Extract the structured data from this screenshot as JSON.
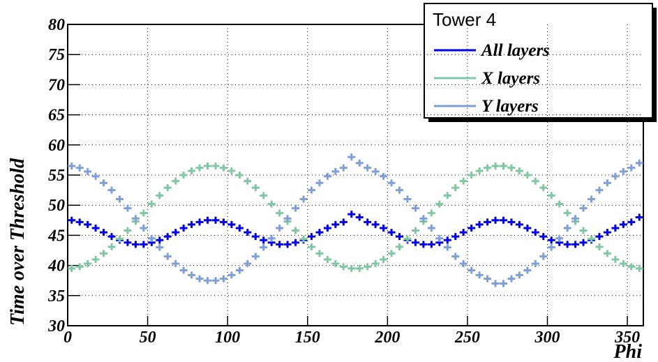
{
  "chart_data": {
    "type": "scatter",
    "legend_title": "Tower 4",
    "x_label": "Phi",
    "y_label": "Time over Threshold",
    "xlim": [
      0,
      360
    ],
    "ylim": [
      30,
      80
    ],
    "xticks": [
      0,
      50,
      100,
      150,
      200,
      250,
      300,
      350
    ],
    "yticks": [
      30,
      35,
      40,
      45,
      50,
      55,
      60,
      65,
      70,
      75,
      80
    ],
    "grid": true,
    "legend": "upper right",
    "x": [
      2.5,
      7.5,
      12.5,
      17.5,
      22.5,
      27.5,
      32.5,
      37.5,
      42.5,
      47.5,
      52.5,
      57.5,
      62.5,
      67.5,
      72.5,
      77.5,
      82.5,
      87.5,
      92.5,
      97.5,
      102.5,
      107.5,
      112.5,
      117.5,
      122.5,
      127.5,
      132.5,
      137.5,
      142.5,
      147.5,
      152.5,
      157.5,
      162.5,
      167.5,
      172.5,
      177.5,
      182.5,
      187.5,
      192.5,
      197.5,
      202.5,
      207.5,
      212.5,
      217.5,
      222.5,
      227.5,
      232.5,
      237.5,
      242.5,
      247.5,
      252.5,
      257.5,
      262.5,
      267.5,
      272.5,
      277.5,
      282.5,
      287.5,
      292.5,
      297.5,
      302.5,
      307.5,
      312.5,
      317.5,
      322.5,
      327.5,
      332.5,
      337.5,
      342.5,
      347.5,
      352.5,
      357.5
    ],
    "series": [
      {
        "name": "All layers",
        "color": "#0000e6",
        "values": [
          47.5,
          47.2,
          46.8,
          46.2,
          45.5,
          44.8,
          44.2,
          43.8,
          43.5,
          43.5,
          43.8,
          44.2,
          44.8,
          45.5,
          46.2,
          46.8,
          47.2,
          47.5,
          47.5,
          47.2,
          46.8,
          46.2,
          45.5,
          44.8,
          44.2,
          43.8,
          43.5,
          43.5,
          43.8,
          44.2,
          44.8,
          45.5,
          46.2,
          46.8,
          47.2,
          48.5,
          48.0,
          47.2,
          46.8,
          46.2,
          45.5,
          44.8,
          44.2,
          43.8,
          43.5,
          43.5,
          43.8,
          44.2,
          44.8,
          45.5,
          46.2,
          46.8,
          47.2,
          47.5,
          47.5,
          47.2,
          46.8,
          46.2,
          45.5,
          44.8,
          44.2,
          43.8,
          43.5,
          43.5,
          43.8,
          44.2,
          44.8,
          45.5,
          46.2,
          46.8,
          47.2,
          48.0
        ]
      },
      {
        "name": "X layers",
        "color": "#80c8a0",
        "values": [
          39.5,
          39.8,
          40.3,
          41.0,
          42.0,
          43.1,
          44.4,
          45.8,
          47.3,
          48.7,
          50.2,
          51.6,
          52.9,
          54.0,
          55.0,
          55.7,
          56.2,
          56.5,
          56.5,
          56.2,
          55.7,
          55.0,
          54.0,
          52.9,
          51.6,
          50.2,
          48.7,
          47.3,
          45.8,
          44.4,
          43.1,
          42.0,
          41.0,
          40.3,
          39.8,
          39.5,
          39.5,
          39.8,
          40.3,
          41.0,
          42.0,
          43.1,
          44.4,
          45.8,
          47.3,
          48.7,
          50.2,
          51.6,
          52.9,
          54.0,
          55.0,
          55.7,
          56.2,
          56.5,
          56.5,
          56.2,
          55.7,
          55.0,
          54.0,
          52.9,
          51.6,
          50.2,
          48.7,
          47.3,
          45.8,
          44.4,
          43.1,
          42.0,
          41.0,
          40.3,
          39.8,
          39.5
        ]
      },
      {
        "name": "Y layers",
        "color": "#7e9fd8",
        "values": [
          56.5,
          56.2,
          55.6,
          54.8,
          53.7,
          52.5,
          51.0,
          49.5,
          47.8,
          46.2,
          44.5,
          43.0,
          41.5,
          40.3,
          39.2,
          38.4,
          37.8,
          37.5,
          37.5,
          37.8,
          38.4,
          39.2,
          40.3,
          41.5,
          43.0,
          44.5,
          46.2,
          47.8,
          49.5,
          51.0,
          52.5,
          53.7,
          54.8,
          55.6,
          56.2,
          58.0,
          57.0,
          56.2,
          55.6,
          54.8,
          53.7,
          52.5,
          51.0,
          49.5,
          47.8,
          46.2,
          44.5,
          43.0,
          41.5,
          40.3,
          39.2,
          38.4,
          37.8,
          37.0,
          37.0,
          37.8,
          38.4,
          39.2,
          40.3,
          41.5,
          43.0,
          44.5,
          46.2,
          47.8,
          49.5,
          51.0,
          52.5,
          53.7,
          54.8,
          55.6,
          56.2,
          57.0
        ]
      }
    ]
  }
}
